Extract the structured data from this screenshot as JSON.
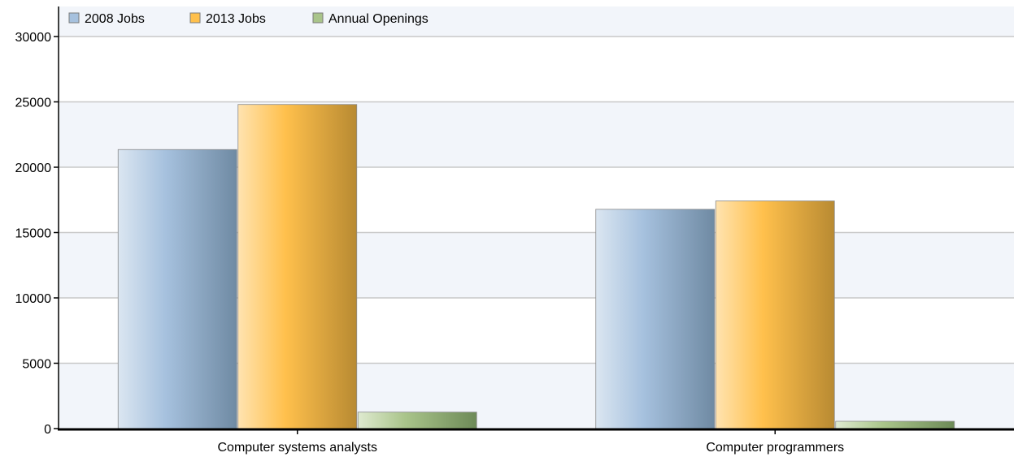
{
  "chart_data": {
    "type": "bar",
    "title": "",
    "xlabel": "",
    "ylabel": "",
    "categories": [
      "Computer systems analysts",
      "Computer programmers"
    ],
    "series": [
      {
        "name": "2008 Jobs",
        "values": [
          21350,
          16780
        ],
        "color": "#a6c1de"
      },
      {
        "name": "2013 Jobs",
        "values": [
          24800,
          17420
        ],
        "color": "#ffc04c"
      },
      {
        "name": "Annual Openings",
        "values": [
          1260,
          560
        ],
        "color": "#a9c48a"
      }
    ],
    "ylim": [
      0,
      30000
    ],
    "yticks": [
      0,
      5000,
      10000,
      15000,
      20000,
      25000,
      30000
    ],
    "grid": true,
    "legend_position": "top-left"
  }
}
